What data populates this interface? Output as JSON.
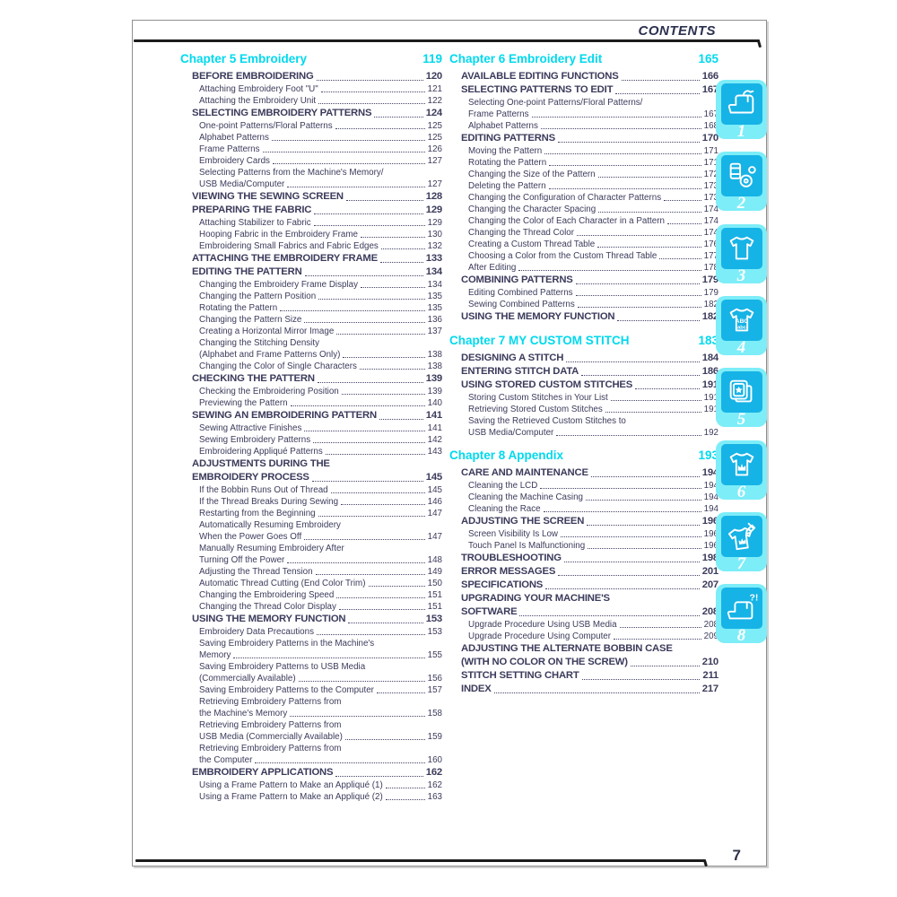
{
  "header": {
    "title": "CONTENTS"
  },
  "page_number": "7",
  "colors": {
    "accent_cyan": "#00d9ee",
    "tab_light_cyan": "#7dedf8",
    "tab_dark_cyan": "#16b3e6",
    "text_dark": "#3b3b5c",
    "rule_black": "#1c1c1c"
  },
  "columns": {
    "left": {
      "blocks": [
        {
          "chapter": {
            "label": "Chapter 5  Embroidery",
            "page": "119"
          },
          "gap_before": false,
          "entries": [
            {
              "level": 1,
              "text": "BEFORE EMBROIDERING",
              "page": "120"
            },
            {
              "level": 2,
              "text": "Attaching Embroidery Foot \"U\"",
              "page": "121"
            },
            {
              "level": 2,
              "text": "Attaching the Embroidery Unit",
              "page": "122"
            },
            {
              "level": 1,
              "text": "SELECTING EMBROIDERY PATTERNS",
              "page": "124"
            },
            {
              "level": 2,
              "text": "One-point Patterns/Floral Patterns",
              "page": "125"
            },
            {
              "level": 2,
              "text": "Alphabet Patterns",
              "page": "125"
            },
            {
              "level": 2,
              "text": "Frame Patterns",
              "page": "126"
            },
            {
              "level": 2,
              "text": "Embroidery Cards",
              "page": "127"
            },
            {
              "level": 2,
              "text": "Selecting Patterns from the Machine's Memory/",
              "page": ""
            },
            {
              "level": 2,
              "text": "USB Media/Computer",
              "page": "127"
            },
            {
              "level": 1,
              "text": "VIEWING THE SEWING SCREEN",
              "page": "128"
            },
            {
              "level": 1,
              "text": "PREPARING THE FABRIC",
              "page": "129"
            },
            {
              "level": 2,
              "text": "Attaching Stabilizer to Fabric",
              "page": "129"
            },
            {
              "level": 2,
              "text": "Hooping Fabric in the Embroidery Frame",
              "page": "130"
            },
            {
              "level": 2,
              "text": "Embroidering Small Fabrics and Fabric Edges",
              "page": "132"
            },
            {
              "level": 1,
              "text": "ATTACHING THE EMBROIDERY FRAME",
              "page": "133"
            },
            {
              "level": 1,
              "text": "EDITING THE PATTERN",
              "page": "134"
            },
            {
              "level": 2,
              "text": "Changing the Embroidery Frame Display",
              "page": "134"
            },
            {
              "level": 2,
              "text": "Changing the Pattern Position",
              "page": "135"
            },
            {
              "level": 2,
              "text": "Rotating the Pattern",
              "page": "135"
            },
            {
              "level": 2,
              "text": "Changing the Pattern Size",
              "page": "136"
            },
            {
              "level": 2,
              "text": "Creating a Horizontal Mirror Image",
              "page": "137"
            },
            {
              "level": 2,
              "text": "Changing the Stitching Density",
              "page": ""
            },
            {
              "level": 2,
              "text": "(Alphabet and Frame Patterns Only)",
              "page": "138"
            },
            {
              "level": 2,
              "text": "Changing the Color of Single Characters",
              "page": "138"
            },
            {
              "level": 1,
              "text": "CHECKING THE PATTERN",
              "page": "139"
            },
            {
              "level": 2,
              "text": "Checking the Embroidering Position",
              "page": "139"
            },
            {
              "level": 2,
              "text": "Previewing the Pattern",
              "page": "140"
            },
            {
              "level": 1,
              "text": "SEWING AN EMBROIDERING PATTERN",
              "page": "141"
            },
            {
              "level": 2,
              "text": "Sewing Attractive Finishes",
              "page": "141"
            },
            {
              "level": 2,
              "text": "Sewing Embroidery Patterns",
              "page": "142"
            },
            {
              "level": 2,
              "text": "Embroidering Appliqué Patterns",
              "page": "143"
            },
            {
              "level": 1,
              "text": "ADJUSTMENTS DURING THE",
              "page": ""
            },
            {
              "level": 1,
              "text": "EMBROIDERY PROCESS",
              "page": "145"
            },
            {
              "level": 2,
              "text": "If the Bobbin Runs Out of Thread",
              "page": "145"
            },
            {
              "level": 2,
              "text": "If the Thread Breaks During Sewing",
              "page": "146"
            },
            {
              "level": 2,
              "text": "Restarting from the Beginning",
              "page": "147"
            },
            {
              "level": 2,
              "text": "Automatically Resuming Embroidery",
              "page": ""
            },
            {
              "level": 2,
              "text": "When the Power Goes Off",
              "page": "147"
            },
            {
              "level": 2,
              "text": "Manually Resuming Embroidery After",
              "page": ""
            },
            {
              "level": 2,
              "text": "Turning Off the Power",
              "page": "148"
            },
            {
              "level": 2,
              "text": "Adjusting the Thread Tension",
              "page": "149"
            },
            {
              "level": 2,
              "text": "Automatic Thread Cutting (End Color Trim)",
              "page": "150"
            },
            {
              "level": 2,
              "text": "Changing the Embroidering Speed",
              "page": "151"
            },
            {
              "level": 2,
              "text": "Changing the Thread Color Display",
              "page": "151"
            },
            {
              "level": 1,
              "text": "USING THE MEMORY FUNCTION",
              "page": "153"
            },
            {
              "level": 2,
              "text": "Embroidery Data Precautions",
              "page": "153"
            },
            {
              "level": 2,
              "text": "Saving Embroidery Patterns in the Machine's",
              "page": ""
            },
            {
              "level": 2,
              "text": "Memory",
              "page": "155"
            },
            {
              "level": 2,
              "text": "Saving Embroidery Patterns to USB Media",
              "page": ""
            },
            {
              "level": 2,
              "text": "(Commercially Available)",
              "page": "156"
            },
            {
              "level": 2,
              "text": "Saving Embroidery Patterns to the Computer",
              "page": "157"
            },
            {
              "level": 2,
              "text": "Retrieving Embroidery Patterns from",
              "page": ""
            },
            {
              "level": 2,
              "text": "the Machine's Memory",
              "page": "158"
            },
            {
              "level": 2,
              "text": "Retrieving Embroidery Patterns from",
              "page": ""
            },
            {
              "level": 2,
              "text": "USB Media (Commercially Available)",
              "page": "159"
            },
            {
              "level": 2,
              "text": "Retrieving Embroidery Patterns from",
              "page": ""
            },
            {
              "level": 2,
              "text": "the Computer",
              "page": "160"
            },
            {
              "level": 1,
              "text": "EMBROIDERY APPLICATIONS",
              "page": "162"
            },
            {
              "level": 2,
              "text": "Using a Frame Pattern to Make an Appliqué (1)",
              "page": "162"
            },
            {
              "level": 2,
              "text": "Using a Frame Pattern to Make an Appliqué (2)",
              "page": "163"
            }
          ]
        }
      ]
    },
    "right": {
      "blocks": [
        {
          "chapter": {
            "label": "Chapter 6  Embroidery Edit",
            "page": "165"
          },
          "gap_before": false,
          "entries": [
            {
              "level": 1,
              "text": "AVAILABLE EDITING FUNCTIONS",
              "page": "166"
            },
            {
              "level": 1,
              "text": "SELECTING PATTERNS TO EDIT",
              "page": "167"
            },
            {
              "level": 2,
              "text": "Selecting One-point Patterns/Floral Patterns/",
              "page": ""
            },
            {
              "level": 2,
              "text": "Frame Patterns",
              "page": "167"
            },
            {
              "level": 2,
              "text": "Alphabet Patterns",
              "page": "168"
            },
            {
              "level": 1,
              "text": "EDITING PATTERNS",
              "page": "170"
            },
            {
              "level": 2,
              "text": "Moving the Pattern",
              "page": "171"
            },
            {
              "level": 2,
              "text": "Rotating the Pattern",
              "page": "171"
            },
            {
              "level": 2,
              "text": "Changing the Size of the Pattern",
              "page": "172"
            },
            {
              "level": 2,
              "text": "Deleting the Pattern",
              "page": "173"
            },
            {
              "level": 2,
              "text": "Changing the Configuration of Character Patterns",
              "page": "173"
            },
            {
              "level": 2,
              "text": "Changing the Character Spacing",
              "page": "174"
            },
            {
              "level": 2,
              "text": "Changing the Color of Each Character in a Pattern",
              "page": "174"
            },
            {
              "level": 2,
              "text": "Changing the Thread Color",
              "page": "174"
            },
            {
              "level": 2,
              "text": "Creating a Custom Thread Table",
              "page": "176"
            },
            {
              "level": 2,
              "text": "Choosing a Color from the Custom Thread Table",
              "page": "177"
            },
            {
              "level": 2,
              "text": "After Editing",
              "page": "178"
            },
            {
              "level": 1,
              "text": "COMBINING PATTERNS",
              "page": "179"
            },
            {
              "level": 2,
              "text": "Editing Combined Patterns",
              "page": "179"
            },
            {
              "level": 2,
              "text": "Sewing Combined Patterns",
              "page": "182"
            },
            {
              "level": 1,
              "text": "USING THE MEMORY FUNCTION",
              "page": "182"
            }
          ]
        },
        {
          "chapter": {
            "label": "Chapter 7  MY CUSTOM STITCH",
            "page": "183"
          },
          "gap_before": true,
          "entries": [
            {
              "level": 1,
              "text": "DESIGNING A STITCH",
              "page": "184"
            },
            {
              "level": 1,
              "text": "ENTERING STITCH DATA",
              "page": "186"
            },
            {
              "level": 1,
              "text": "USING STORED CUSTOM STITCHES",
              "page": "191"
            },
            {
              "level": 2,
              "text": "Storing Custom Stitches in Your List",
              "page": "191"
            },
            {
              "level": 2,
              "text": "Retrieving Stored Custom Stitches",
              "page": "191"
            },
            {
              "level": 2,
              "text": "Saving the Retrieved Custom Stitches to",
              "page": ""
            },
            {
              "level": 2,
              "text": "USB Media/Computer",
              "page": "192"
            }
          ]
        },
        {
          "chapter": {
            "label": "Chapter 8  Appendix",
            "page": "193"
          },
          "gap_before": true,
          "entries": [
            {
              "level": 1,
              "text": "CARE AND MAINTENANCE",
              "page": "194"
            },
            {
              "level": 2,
              "text": "Cleaning the LCD",
              "page": "194"
            },
            {
              "level": 2,
              "text": "Cleaning the Machine Casing",
              "page": "194"
            },
            {
              "level": 2,
              "text": "Cleaning the Race",
              "page": "194"
            },
            {
              "level": 1,
              "text": "ADJUSTING THE SCREEN",
              "page": "196"
            },
            {
              "level": 2,
              "text": "Screen Visibility Is Low",
              "page": "196"
            },
            {
              "level": 2,
              "text": "Touch Panel Is Malfunctioning",
              "page": "196"
            },
            {
              "level": 1,
              "text": "TROUBLESHOOTING",
              "page": "198"
            },
            {
              "level": 1,
              "text": "ERROR MESSAGES",
              "page": "201"
            },
            {
              "level": 1,
              "text": "SPECIFICATIONS",
              "page": "207"
            },
            {
              "level": 1,
              "text": "UPGRADING YOUR MACHINE'S",
              "page": ""
            },
            {
              "level": 1,
              "text": "SOFTWARE",
              "page": "208"
            },
            {
              "level": 2,
              "text": "Upgrade Procedure Using USB Media",
              "page": "208"
            },
            {
              "level": 2,
              "text": "Upgrade Procedure Using Computer",
              "page": "209"
            },
            {
              "level": 1,
              "text": "ADJUSTING THE ALTERNATE BOBBIN CASE",
              "page": ""
            },
            {
              "level": 1,
              "text": "(WITH NO COLOR ON THE SCREW)",
              "page": "210"
            },
            {
              "level": 1,
              "text": "STITCH SETTING CHART",
              "page": "211"
            },
            {
              "level": 1,
              "text": "INDEX",
              "page": "217"
            }
          ]
        }
      ]
    }
  },
  "tabs": [
    {
      "number": "1",
      "icon": "sewing-machine-icon"
    },
    {
      "number": "2",
      "icon": "thread-bobbin-icon"
    },
    {
      "number": "3",
      "icon": "t-shirt-icon"
    },
    {
      "number": "4",
      "icon": "t-shirt-abc-icon"
    },
    {
      "number": "5",
      "icon": "embroidery-frame-icon"
    },
    {
      "number": "6",
      "icon": "t-shirt-embroidery-icon"
    },
    {
      "number": "7",
      "icon": "t-shirt-edit-icon"
    },
    {
      "number": "8",
      "icon": "sewing-machine-help-icon"
    }
  ]
}
